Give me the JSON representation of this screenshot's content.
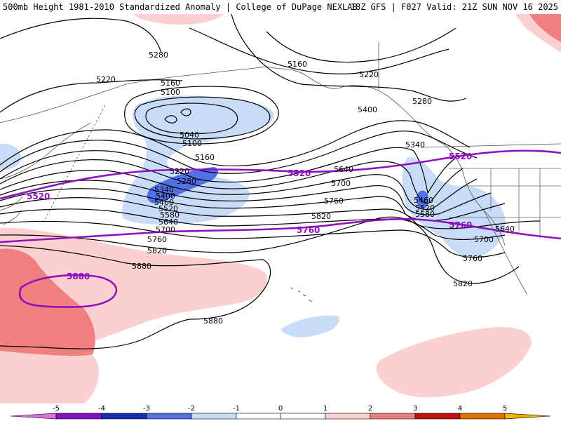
{
  "header": {
    "title_left": "500mb Height 1981-2010 Standardized Anomaly | College of DuPage NEXLAB",
    "title_right": "18Z GFS | F027 Valid: 21Z SUN NOV 16 2025"
  },
  "colors": {
    "neg5": "#e070e0",
    "neg4": "#8010c0",
    "neg3": "#1030b0",
    "neg2": "#5070e8",
    "neg1": "#c8dcf8",
    "zero": "#ffffff",
    "pos1": "#fcd0d0",
    "pos2": "#f08080",
    "pos3": "#c01010",
    "pos4": "#e07000",
    "pos5": "#f8b000",
    "contour": "#000000",
    "highlight": "#9010c0"
  },
  "contour_labels": {
    "l5280a": "5280",
    "l5160a": "5160",
    "l5220a": "5220",
    "l5220b": "5220",
    "l5160b": "5160",
    "l5100a": "5100",
    "l5040": "5040",
    "l5100b": "5100",
    "l5160c": "5160",
    "l5220c": "5220",
    "l5280b": "5280",
    "l5340a": "5340",
    "l5400a": "5400",
    "l5460a": "5460",
    "l5520a": "5520",
    "l5580a": "5580",
    "l5640a": "5640",
    "l5700a": "5700",
    "l5760a": "5760",
    "l5820a": "5820",
    "l5880a": "5880",
    "l5880b": "5880",
    "l5400b": "5400",
    "l5280c": "5280",
    "l5340b": "5340",
    "l5640b": "5640",
    "l5700b": "5700",
    "l5760b": "5760",
    "l5820b": "5820",
    "l5460b": "5460",
    "l5520b": "5520",
    "l5580b": "5580",
    "l5640c": "5640",
    "l5700c": "5700",
    "l5760c": "5760",
    "l5820c": "5820"
  },
  "highlight_labels": {
    "h5520a": "5520",
    "h5520b": "5520",
    "h5520c": "5520",
    "h5760a": "5760",
    "h5760b": "5760",
    "h5880": "5880"
  },
  "colorbar": {
    "ticks": [
      "-5",
      "-4",
      "-3",
      "-2",
      "-1",
      "0",
      "1",
      "2",
      "3",
      "4",
      "5"
    ]
  }
}
